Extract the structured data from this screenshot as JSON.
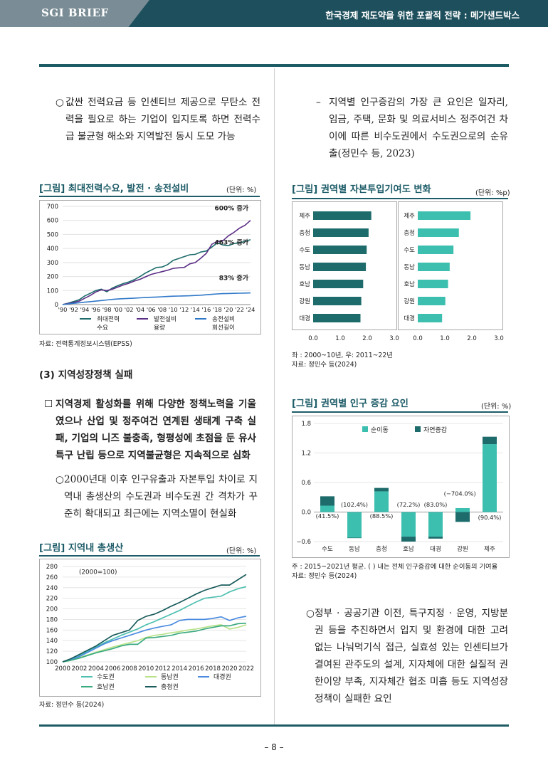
{
  "header": {
    "brief_label": "SGI BRIEF",
    "doc_title": "한국경제 재도약을 위한 포괄적 전략 : 메가샌드박스"
  },
  "left": {
    "bullet1": {
      "marker": "○",
      "text": "값싼 전력요금 등 인센티브 제공으로 무탄소 전력을 필요로 하는 기업이 입지토록 하면 전력수급 불균형 해소와 지역발전 동시 도모 가능"
    },
    "fig1": {
      "title": "[그림] 최대전력수요, 발전 · 송전설비",
      "unit": "(단위: %)",
      "source": "자료: 전력통계정보시스템(EPSS)",
      "chart_data": {
        "type": "line",
        "title": "[그림] 최대전력수요, 발전 · 송전설비",
        "ylim": [
          0,
          700
        ],
        "yticks": [
          0,
          100,
          200,
          300,
          400,
          500,
          600,
          700
        ],
        "x": [
          1990,
          1991,
          1992,
          1993,
          1994,
          1995,
          1996,
          1997,
          1998,
          1999,
          2000,
          2001,
          2002,
          2003,
          2004,
          2005,
          2006,
          2007,
          2008,
          2009,
          2010,
          2011,
          2012,
          2013,
          2014,
          2015,
          2016,
          2017,
          2018,
          2019,
          2020,
          2021,
          2022,
          2023,
          2024
        ],
        "xtick_labels": [
          "'90",
          "'92",
          "'94",
          "'96",
          "'98",
          "'00",
          "'02",
          "'04",
          "'06",
          "'08",
          "'10",
          "'12",
          "'14",
          "'16",
          "'18",
          "'20",
          "'22",
          "'24"
        ],
        "series": [
          {
            "name": "최대전력수요",
            "color": "#1d6b6b",
            "values": [
              0,
              10,
              22,
              35,
              62,
              80,
              100,
              110,
              92,
              118,
              135,
              150,
              162,
              178,
              200,
              225,
              245,
              265,
              268,
              285,
              315,
              328,
              342,
              355,
              358,
              375,
              382,
              410,
              440,
              425,
              420,
              435,
              440,
              450,
              463
            ]
          },
          {
            "name": "발전설비용량",
            "color": "#5c2f86",
            "values": [
              0,
              8,
              15,
              25,
              45,
              65,
              90,
              105,
              100,
              110,
              125,
              140,
              152,
              168,
              180,
              198,
              215,
              225,
              235,
              245,
              258,
              262,
              265,
              290,
              300,
              330,
              365,
              430,
              450,
              455,
              490,
              515,
              545,
              565,
              600
            ]
          },
          {
            "name": "송전설비회선길이",
            "color": "#2f78c8",
            "values": [
              0,
              5,
              9,
              13,
              17,
              21,
              25,
              29,
              33,
              37,
              40,
              42,
              44,
              46,
              48,
              50,
              52,
              54,
              56,
              58,
              60,
              61,
              62,
              63,
              65,
              67,
              70,
              73,
              76,
              78,
              79,
              80,
              81,
              82,
              83
            ]
          }
        ],
        "annotations": [
          "600% 증가",
          "463% 증가",
          "83% 증가"
        ],
        "legend": [
          "최대전력 수요",
          "발전설비 용량",
          "송전설비 회선길이"
        ]
      }
    },
    "section_title": "(3) 지역성장정책 실패",
    "square": {
      "marker": "☐",
      "text": "지역경제 활성화를 위해 다양한 정책노력을 기울였으나 산업 및 정주여건 연계된 생태계 구축 실패, 기업의 니즈 불충족, 형평성에 초점을 둔 유사 특구 난립 등으로 지역불균형은 지속적으로 심화"
    },
    "bullet2": {
      "marker": "○",
      "text": "2000년대 이후 인구유출과 자본투입 차이로 지역내 총생산의 수도권과 비수도권 간 격차가 꾸준히 확대되고 최근에는 지역소멸이 현실화"
    },
    "fig3": {
      "title": "[그림] 지역내 총생산",
      "unit": "(단위: %)",
      "source": "자료: 정민수 등(2024)",
      "chart_data": {
        "type": "line",
        "title": "[그림] 지역내 총생산",
        "annotation": "(2000=100)",
        "ylim": [
          100,
          280
        ],
        "yticks": [
          100,
          120,
          140,
          160,
          180,
          200,
          220,
          240,
          260,
          280
        ],
        "x": [
          2000,
          2001,
          2002,
          2003,
          2004,
          2005,
          2006,
          2007,
          2008,
          2009,
          2010,
          2011,
          2012,
          2013,
          2014,
          2015,
          2016,
          2017,
          2018,
          2019,
          2020,
          2021,
          2022
        ],
        "xtick_labels": [
          "2000",
          "2002",
          "2004",
          "2006",
          "2008",
          "2010",
          "2012",
          "2014",
          "2016",
          "2018",
          "2020",
          "2022"
        ],
        "series": [
          {
            "name": "수도권",
            "color": "#4fc0b0",
            "values": [
              100,
              105,
              112,
              120,
              128,
              136,
              143,
              150,
              156,
              162,
              170,
              176,
              183,
              190,
              197,
              205,
              213,
              220,
              222,
              224,
              232,
              238,
              242
            ]
          },
          {
            "name": "동남권",
            "color": "#b8e28a",
            "values": [
              100,
              103,
              108,
              113,
              118,
              123,
              128,
              132,
              136,
              140,
              146,
              150,
              152,
              155,
              157,
              160,
              162,
              165,
              168,
              170,
              162,
              165,
              170
            ]
          },
          {
            "name": "대경권",
            "color": "#4b8be0",
            "values": [
              100,
              104,
              110,
              118,
              126,
              134,
              140,
              145,
              150,
              155,
              160,
              164,
              167,
              170,
              178,
              180,
              180,
              180,
              182,
              185,
              178,
              183,
              186
            ]
          },
          {
            "name": "호남권",
            "color": "#3aaa80",
            "values": [
              100,
              103,
              107,
              112,
              117,
              121,
              125,
              130,
              133,
              133,
              145,
              146,
              148,
              150,
              154,
              156,
              158,
              162,
              165,
              168,
              168,
              172,
              173
            ]
          },
          {
            "name": "충청권",
            "color": "#1a5c5c",
            "values": [
              100,
              106,
              114,
              122,
              130,
              140,
              150,
              155,
              160,
              178,
              186,
              190,
              197,
              205,
              212,
              220,
              228,
              235,
              240,
              245,
              245,
              255,
              265
            ]
          }
        ]
      }
    }
  },
  "right": {
    "dash1": {
      "marker": "–",
      "text": "지역별 인구증감의 가장 큰 요인은 일자리, 임금, 주택, 문화 및 의료서비스 정주여건 차이에 따른 비수도권에서 수도권으로의 순유출(정민수 등, 2023)"
    },
    "fig2": {
      "title": "[그림] 권역별 자본투입기여도 변화",
      "unit": "(단위: %p)",
      "source_lines": [
        "좌 : 2000~10년, 우: 2011~22년",
        "자료: 정민수 등(2024)"
      ],
      "chart_data": {
        "type": "bar",
        "title": "[그림] 권역별 자본투입기여도 변화",
        "orientation": "horizontal",
        "categories": [
          "제주",
          "충청",
          "수도",
          "동남",
          "호남",
          "강원",
          "대경"
        ],
        "xlim": [
          0,
          3
        ],
        "xticks": [
          "0.0",
          "1.0",
          "2.0",
          "3.0"
        ],
        "panels": [
          {
            "name": "좌 : 2000~10년",
            "color": "#1d6b6b",
            "values": [
              2.15,
              2.05,
              1.98,
              1.95,
              1.85,
              1.78,
              1.75
            ]
          },
          {
            "name": "우: 2011~22년",
            "color": "#3dbfb0",
            "values": [
              1.95,
              1.52,
              1.32,
              1.18,
              1.12,
              1.02,
              0.9
            ]
          }
        ]
      }
    },
    "fig4": {
      "title": "[그림] 권역별 인구 증감 요인",
      "unit": "(단위: %)",
      "source_lines": [
        "주 : 2015~2021년 평균. ( ) 내는 전체 인구증감에 대한 순이동의 기여율",
        "자료: 정민수 등(2024)"
      ],
      "chart_data": {
        "type": "bar",
        "title": "[그림] 권역별 인구 증감 요인",
        "stacked": true,
        "categories": [
          "수도",
          "동남",
          "충청",
          "호남",
          "대경",
          "강원",
          "제주"
        ],
        "ylim": [
          -0.6,
          1.8
        ],
        "yticks": [
          "1.8",
          "1.2",
          "0.6",
          "0.0",
          "−0.6"
        ],
        "series": [
          {
            "name": "순이동",
            "color": "#3dbfb0",
            "values": [
              0.13,
              -0.52,
              0.42,
              -0.5,
              -0.5,
              0.08,
              1.38
            ]
          },
          {
            "name": "자연증감",
            "color": "#1d6b6b",
            "values": [
              0.19,
              -0.01,
              0.07,
              -0.1,
              -0.04,
              -0.2,
              0.15
            ]
          }
        ],
        "labels": [
          "(41.5%)",
          "(102.4%)",
          "(88.5%)",
          "(72.2%)",
          "(83.0%)",
          "(−704.0%)",
          "(90.4%)"
        ]
      }
    },
    "bullet3": {
      "marker": "○",
      "text": "정부 · 공공기관 이전, 특구지정 · 운영, 지방분권 등을 추진하면서 입지 및 환경에 대한 고려 없는 나눠먹기식 접근, 실효성 있는 인센티브가 결여된 관주도의 설계, 지자체에 대한 실질적 권한이양 부족, 지자체간 협조 미흡 등도 지역성장정책이 실패한 요인"
    }
  },
  "footer": {
    "page_number": "– 8 –"
  }
}
